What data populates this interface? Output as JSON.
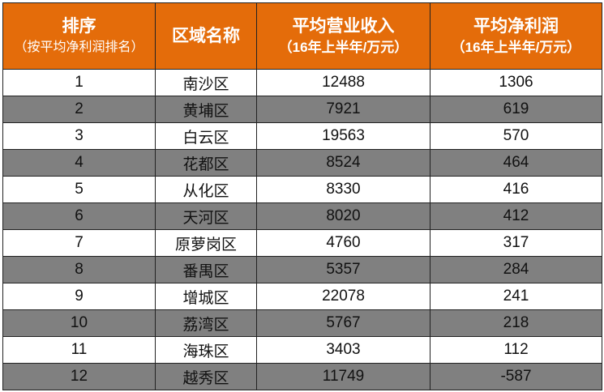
{
  "colors": {
    "header": "#E46C0A",
    "stripe": "#808080"
  },
  "headers": [
    {
      "main": "排序",
      "sub": "（按平均净利润排名）"
    },
    {
      "main": "区域名称",
      "sub": ""
    },
    {
      "main": "平均营业收入",
      "sub": "（16年上半年/万元）"
    },
    {
      "main": "平均净利润",
      "sub": "（16年上半年/万元）"
    }
  ],
  "rows": [
    [
      "1",
      "南沙区",
      "12488",
      "1306"
    ],
    [
      "2",
      "黄埔区",
      "7921",
      "619"
    ],
    [
      "3",
      "白云区",
      "19563",
      "570"
    ],
    [
      "4",
      "花都区",
      "8524",
      "464"
    ],
    [
      "5",
      "从化区",
      "8330",
      "416"
    ],
    [
      "6",
      "天河区",
      "8020",
      "412"
    ],
    [
      "7",
      "原萝岗区",
      "4760",
      "317"
    ],
    [
      "8",
      "番禺区",
      "5357",
      "284"
    ],
    [
      "9",
      "增城区",
      "22078",
      "241"
    ],
    [
      "10",
      "荔湾区",
      "5767",
      "218"
    ],
    [
      "11",
      "海珠区",
      "3403",
      "112"
    ],
    [
      "12",
      "越秀区",
      "11749",
      "-587"
    ]
  ]
}
